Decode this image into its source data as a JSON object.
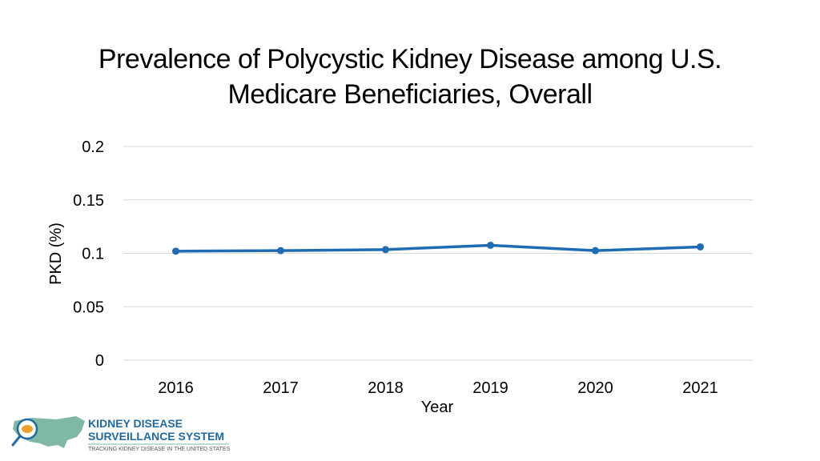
{
  "chart_data": {
    "type": "line",
    "title_line1": "Prevalence of Polycystic Kidney Disease among U.S.",
    "title_line2": "Medicare Beneficiaries, Overall",
    "xlabel": "Year",
    "ylabel": "PKD (%)",
    "categories": [
      "2016",
      "2017",
      "2018",
      "2019",
      "2020",
      "2021"
    ],
    "series": [
      {
        "name": "PKD (%)",
        "values": [
          0.102,
          0.1025,
          0.1035,
          0.1075,
          0.1025,
          0.106
        ]
      }
    ],
    "ylim": [
      0,
      0.2
    ],
    "yticks": [
      0,
      0.05,
      0.1,
      0.15,
      0.2
    ],
    "ytick_labels": [
      "0",
      "0.05",
      "0.1",
      "0.15",
      "0.2"
    ],
    "grid": true,
    "line_color": "#1f6cb5",
    "grid_color": "#d9d9d9"
  },
  "logo": {
    "line1": "KIDNEY DISEASE",
    "line2": "SURVEILLANCE SYSTEM",
    "line3": "TRACKING KIDNEY DISEASE IN THE UNITED STATES",
    "accent_color": "#f0a030",
    "map_color": "#7fb9a6",
    "text_color": "#1f6aa5"
  }
}
